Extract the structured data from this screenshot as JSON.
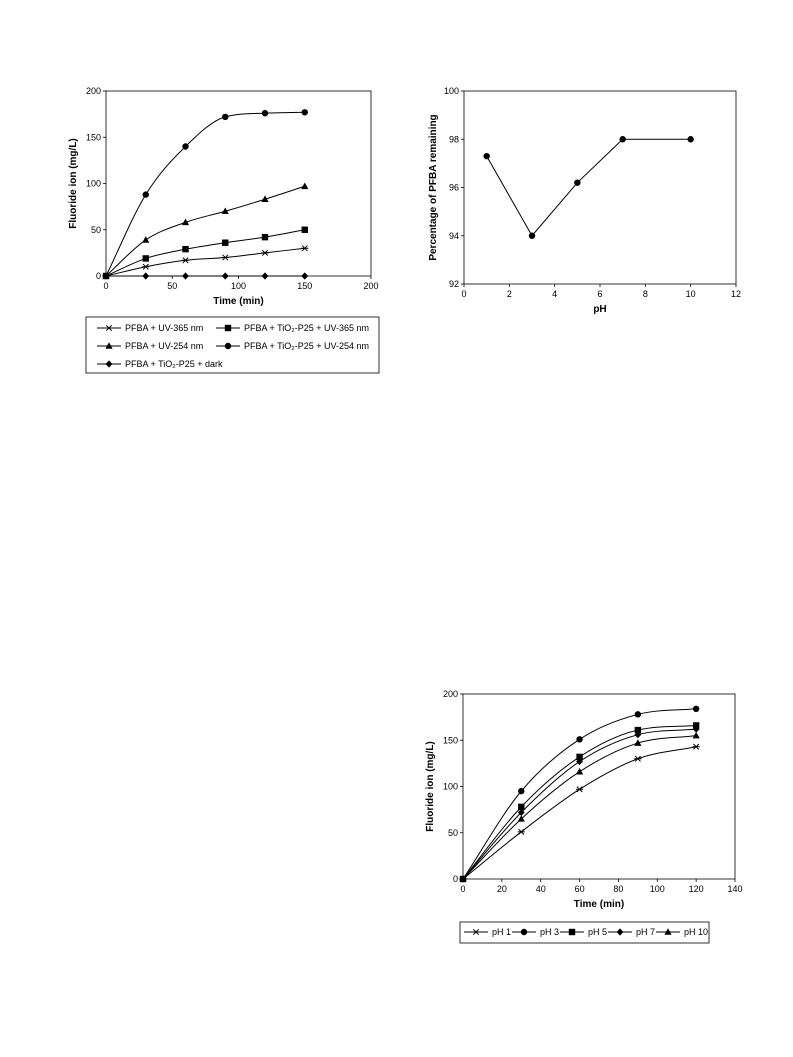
{
  "chart_data": [
    {
      "type": "line",
      "xlabel": "Time (min)",
      "ylabel": "Fluoride ion (mg/L)",
      "xlim": [
        0,
        200
      ],
      "ylim": [
        0,
        200
      ],
      "xticks": [
        0,
        50,
        100,
        150,
        200
      ],
      "yticks": [
        0,
        50,
        100,
        150,
        200
      ],
      "grid": false,
      "smooth": true,
      "legend_position": "below",
      "series": [
        {
          "name": "PFBA + UV-365 nm",
          "marker": "asterisk",
          "x": [
            0,
            30,
            60,
            90,
            120,
            150
          ],
          "y": [
            0,
            10,
            17,
            20,
            25,
            30
          ]
        },
        {
          "name": "PFBA + TiO₂-P25 + UV-365 nm",
          "marker": "square",
          "x": [
            0,
            30,
            60,
            90,
            120,
            150
          ],
          "y": [
            0,
            19,
            29,
            36,
            42,
            50
          ]
        },
        {
          "name": "PFBA + UV-254 nm",
          "marker": "triangle",
          "x": [
            0,
            30,
            60,
            90,
            120,
            150
          ],
          "y": [
            0,
            39,
            58,
            70,
            83,
            97
          ]
        },
        {
          "name": "PFBA + TiO₂-P25 + UV-254 nm",
          "marker": "circle",
          "x": [
            0,
            30,
            60,
            90,
            120,
            150
          ],
          "y": [
            0,
            88,
            140,
            172,
            176,
            177
          ]
        },
        {
          "name": "PFBA + TiO₂-P25 + dark",
          "marker": "diamond",
          "x": [
            0,
            30,
            60,
            90,
            120,
            150
          ],
          "y": [
            0,
            0,
            0,
            0,
            0,
            0
          ]
        }
      ]
    },
    {
      "type": "line",
      "xlabel": "pH",
      "ylabel": "Percentage of PFBA remaining",
      "xlim": [
        0,
        12
      ],
      "ylim": [
        92,
        100
      ],
      "xticks": [
        0,
        2,
        4,
        6,
        8,
        10,
        12
      ],
      "yticks": [
        92,
        94,
        96,
        98,
        100
      ],
      "grid": false,
      "smooth": false,
      "series": [
        {
          "marker": "circle",
          "x": [
            1,
            3,
            5,
            7,
            10
          ],
          "y": [
            97.3,
            94.0,
            96.2,
            98.0,
            98.0
          ]
        }
      ]
    },
    {
      "type": "line",
      "xlabel": "Time (min)",
      "ylabel": "Fluoride ion (mg/L)",
      "xlim": [
        0,
        140
      ],
      "ylim": [
        0,
        200
      ],
      "xticks": [
        0,
        20,
        40,
        60,
        80,
        100,
        120,
        140
      ],
      "yticks": [
        0,
        50,
        100,
        150,
        200
      ],
      "grid": false,
      "smooth": true,
      "legend_position": "below",
      "series": [
        {
          "name": "pH 1",
          "marker": "asterisk",
          "x": [
            0,
            30,
            60,
            90,
            120
          ],
          "y": [
            0,
            51,
            97,
            130,
            143
          ]
        },
        {
          "name": "pH 3",
          "marker": "circle",
          "x": [
            0,
            30,
            60,
            90,
            120
          ],
          "y": [
            0,
            95,
            151,
            178,
            184
          ]
        },
        {
          "name": "pH 5",
          "marker": "square",
          "x": [
            0,
            30,
            60,
            90,
            120
          ],
          "y": [
            0,
            78,
            132,
            161,
            166
          ]
        },
        {
          "name": "pH 7",
          "marker": "diamond",
          "x": [
            0,
            30,
            60,
            90,
            120
          ],
          "y": [
            0,
            72,
            127,
            156,
            162
          ]
        },
        {
          "name": "pH 10",
          "marker": "triangle",
          "x": [
            0,
            30,
            60,
            90,
            120
          ],
          "y": [
            0,
            65,
            116,
            147,
            155
          ]
        }
      ]
    }
  ]
}
